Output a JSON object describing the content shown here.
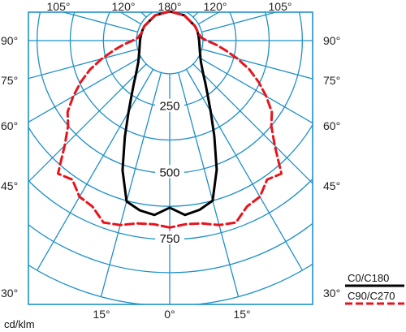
{
  "chart_data": {
    "type": "polar",
    "title": "",
    "unit_label": "cd/klm",
    "angle_labels": {
      "top": [
        "105°",
        "120°",
        "180°",
        "120°",
        "105°"
      ],
      "left": [
        "90°",
        "75°",
        "60°",
        "45°",
        "30°"
      ],
      "right": [
        "90°",
        "75°",
        "60°",
        "45°",
        "30°"
      ],
      "bottom": [
        "15°",
        "0°",
        "15°"
      ]
    },
    "radial_axis": {
      "max": 1000,
      "grid_step": 125,
      "labels": [
        "250",
        "500",
        "750"
      ],
      "label_values": [
        250,
        500,
        750
      ]
    },
    "grid": true,
    "legend_position": "bottom-right",
    "series": [
      {
        "name": "C0/C180",
        "color": "#000000",
        "dash": "solid",
        "angles": [
          0,
          5,
          10,
          15,
          20,
          25,
          30,
          35,
          40,
          45,
          50,
          55,
          60,
          65,
          70,
          75,
          80,
          85,
          90,
          95,
          100,
          105,
          110,
          120,
          150,
          180
        ],
        "intensity_left": [
          630,
          660,
          650,
          628,
          520,
          400,
          310,
          250,
          210,
          180,
          160,
          145,
          135,
          128,
          122,
          118,
          115,
          113,
          112,
          111,
          110,
          110,
          110,
          110,
          110,
          110
        ],
        "intensity_right": [
          630,
          660,
          648,
          625,
          518,
          398,
          309,
          249,
          209,
          179,
          159,
          144,
          134,
          127,
          121,
          117,
          114,
          112,
          111,
          110,
          110,
          110,
          110,
          110,
          110,
          110
        ]
      },
      {
        "name": "C90/C270",
        "color": "#e8141c",
        "dash": "dashed",
        "angles": [
          0,
          5,
          10,
          15,
          20,
          25,
          30,
          35,
          40,
          45,
          50,
          55,
          60,
          65,
          70,
          75,
          80,
          85,
          90,
          95,
          100,
          105,
          110,
          120,
          150,
          180
        ],
        "intensity_left": [
          705,
          695,
          700,
          720,
          730,
          690,
          680,
          640,
          655,
          560,
          500,
          470,
          420,
          370,
          320,
          265,
          215,
          175,
          140,
          120,
          115,
          110,
          110,
          110,
          110,
          110
        ],
        "intensity_right": [
          705,
          695,
          700,
          720,
          730,
          690,
          680,
          640,
          655,
          560,
          500,
          470,
          420,
          370,
          320,
          265,
          215,
          175,
          140,
          120,
          115,
          110,
          110,
          110,
          110,
          110
        ]
      }
    ]
  }
}
